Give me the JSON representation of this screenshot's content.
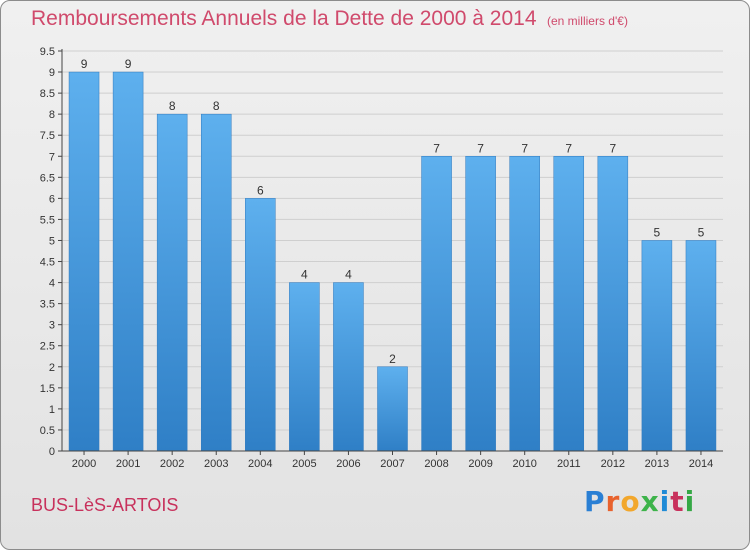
{
  "chart_data": {
    "type": "bar",
    "title": "Remboursements Annuels de la Dette de 2000 à 2014",
    "unit": "(en milliers d'€)",
    "categories": [
      "2000",
      "2001",
      "2002",
      "2003",
      "2004",
      "2005",
      "2006",
      "2007",
      "2008",
      "2009",
      "2010",
      "2011",
      "2012",
      "2013",
      "2014"
    ],
    "values": [
      9,
      9,
      8,
      8,
      6,
      4,
      4,
      2,
      7,
      7,
      7,
      7,
      7,
      5,
      5
    ],
    "data_labels": [
      "9",
      "9",
      "8",
      "8",
      "6",
      "4",
      "4",
      "2",
      "7",
      "7",
      "7",
      "7",
      "7",
      "5",
      "5"
    ],
    "ylim": [
      0,
      9.5
    ],
    "yticks": [
      "0",
      "0.5",
      "1",
      "1.5",
      "2",
      "2.5",
      "3",
      "3.5",
      "4",
      "4.5",
      "5",
      "5.5",
      "6",
      "6.5",
      "7",
      "7.5",
      "8",
      "8.5",
      "9",
      "9.5"
    ],
    "grid": true,
    "bar_color": "#3c8fd6"
  },
  "footer": {
    "commune": "BUS-LèS-ARTOIS",
    "brand": "Proxiti",
    "brand_colors": [
      "#2a7fd4",
      "#e8622d",
      "#f2a72c",
      "#3db34a",
      "#1f8bd6",
      "#c8315c",
      "#35a845"
    ]
  }
}
